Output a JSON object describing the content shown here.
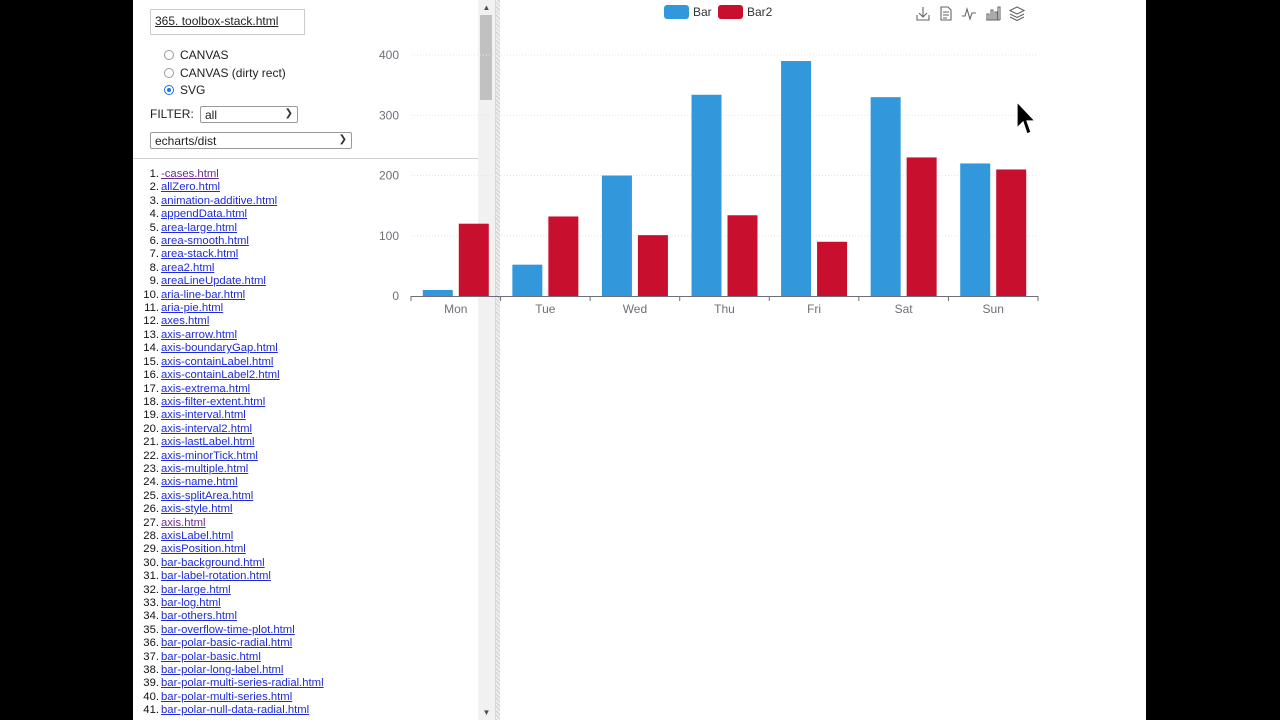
{
  "file_title": "365. toolbox-stack.html",
  "renderers": [
    {
      "label": "CANVAS",
      "checked": false
    },
    {
      "label": "CANVAS (dirty rect)",
      "checked": false
    },
    {
      "label": "SVG",
      "checked": true
    }
  ],
  "filter": {
    "label": "FILTER:",
    "value": "all"
  },
  "dist": {
    "value": "echarts/dist"
  },
  "tests": [
    {
      "num": "1.",
      "name": "-cases.html",
      "visited": true
    },
    {
      "num": "2.",
      "name": "allZero.html"
    },
    {
      "num": "3.",
      "name": "animation-additive.html"
    },
    {
      "num": "4.",
      "name": "appendData.html"
    },
    {
      "num": "5.",
      "name": "area-large.html"
    },
    {
      "num": "6.",
      "name": "area-smooth.html"
    },
    {
      "num": "7.",
      "name": "area-stack.html"
    },
    {
      "num": "8.",
      "name": "area2.html"
    },
    {
      "num": "9.",
      "name": "areaLineUpdate.html"
    },
    {
      "num": "10.",
      "name": "aria-line-bar.html"
    },
    {
      "num": "11.",
      "name": "aria-pie.html"
    },
    {
      "num": "12.",
      "name": "axes.html"
    },
    {
      "num": "13.",
      "name": "axis-arrow.html"
    },
    {
      "num": "14.",
      "name": "axis-boundaryGap.html"
    },
    {
      "num": "15.",
      "name": "axis-containLabel.html"
    },
    {
      "num": "16.",
      "name": "axis-containLabel2.html"
    },
    {
      "num": "17.",
      "name": "axis-extrema.html"
    },
    {
      "num": "18.",
      "name": "axis-filter-extent.html"
    },
    {
      "num": "19.",
      "name": "axis-interval.html"
    },
    {
      "num": "20.",
      "name": "axis-interval2.html"
    },
    {
      "num": "21.",
      "name": "axis-lastLabel.html"
    },
    {
      "num": "22.",
      "name": "axis-minorTick.html"
    },
    {
      "num": "23.",
      "name": "axis-multiple.html"
    },
    {
      "num": "24.",
      "name": "axis-name.html"
    },
    {
      "num": "25.",
      "name": "axis-splitArea.html"
    },
    {
      "num": "26.",
      "name": "axis-style.html"
    },
    {
      "num": "27.",
      "name": "axis.html",
      "visited": true
    },
    {
      "num": "28.",
      "name": "axisLabel.html"
    },
    {
      "num": "29.",
      "name": "axisPosition.html"
    },
    {
      "num": "30.",
      "name": "bar-background.html"
    },
    {
      "num": "31.",
      "name": "bar-label-rotation.html"
    },
    {
      "num": "32.",
      "name": "bar-large.html"
    },
    {
      "num": "33.",
      "name": "bar-log.html"
    },
    {
      "num": "34.",
      "name": "bar-others.html"
    },
    {
      "num": "35.",
      "name": "bar-overflow-time-plot.html"
    },
    {
      "num": "36.",
      "name": "bar-polar-basic-radial.html"
    },
    {
      "num": "37.",
      "name": "bar-polar-basic.html"
    },
    {
      "num": "38.",
      "name": "bar-polar-long-label.html"
    },
    {
      "num": "39.",
      "name": "bar-polar-multi-series-radial.html"
    },
    {
      "num": "40.",
      "name": "bar-polar-multi-series.html"
    },
    {
      "num": "41.",
      "name": "bar-polar-null-data-radial.html"
    }
  ],
  "toolbox": [
    "download-icon",
    "data-view-icon",
    "line-chart-icon",
    "bar-chart-icon",
    "stack-icon"
  ],
  "chart_data": {
    "type": "bar",
    "categories": [
      "Mon",
      "Tue",
      "Wed",
      "Thu",
      "Fri",
      "Sat",
      "Sun"
    ],
    "series": [
      {
        "name": "Bar",
        "color": "#3398db",
        "values": [
          10,
          52,
          200,
          334,
          390,
          330,
          220
        ]
      },
      {
        "name": "Bar2",
        "color": "#c8102e",
        "values": [
          120,
          132,
          101,
          134,
          90,
          230,
          210
        ]
      }
    ],
    "yticks": [
      0,
      100,
      200,
      300,
      400
    ],
    "ylim": [
      0,
      400
    ],
    "grid": true,
    "legend_position": "top-center"
  }
}
